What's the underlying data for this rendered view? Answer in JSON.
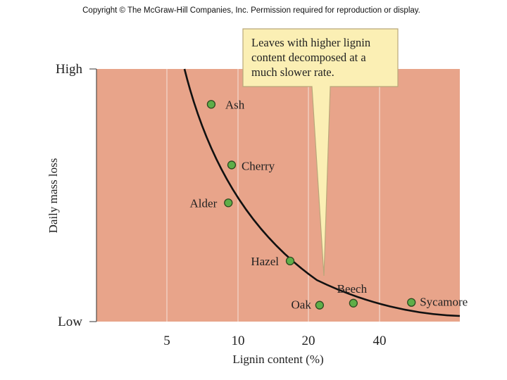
{
  "copyright": "Copyright © The McGraw-Hill Companies, Inc. Permission required for reproduction or display.",
  "colors": {
    "plot_background": "#e8a48a",
    "gridline": "#f6e2da",
    "point_fill": "#5fae48",
    "point_stroke": "#2c4a20",
    "curve": "#111111",
    "callout_fill": "#fbefb4",
    "callout_stroke": "#b9a77a"
  },
  "chart_data": {
    "type": "scatter",
    "xlabel": "Lignin content (%)",
    "ylabel": "Daily mass loss",
    "x_ticks": [
      "5",
      "10",
      "20",
      "40"
    ],
    "y_ticks": [
      "High",
      "Low"
    ],
    "xlim": [
      0,
      48
    ],
    "ylim": [
      0,
      100
    ],
    "x_scale": "log",
    "grid": "vertical",
    "points": [
      {
        "label": "Ash",
        "x": 7.7,
        "y": 86
      },
      {
        "label": "Cherry",
        "x": 9.4,
        "y": 62
      },
      {
        "label": "Alder",
        "x": 9.1,
        "y": 47
      },
      {
        "label": "Hazel",
        "x": 16.7,
        "y": 24
      },
      {
        "label": "Oak",
        "x": 22.3,
        "y": 6.5
      },
      {
        "label": "Beech",
        "x": 31,
        "y": 7.3
      },
      {
        "label": "Sycamore",
        "x": 43,
        "y": 7.6
      }
    ],
    "trend": "decreasing curve",
    "annotation": [
      "Leaves with higher lignin",
      "content decomposed at a",
      "much slower rate."
    ]
  }
}
